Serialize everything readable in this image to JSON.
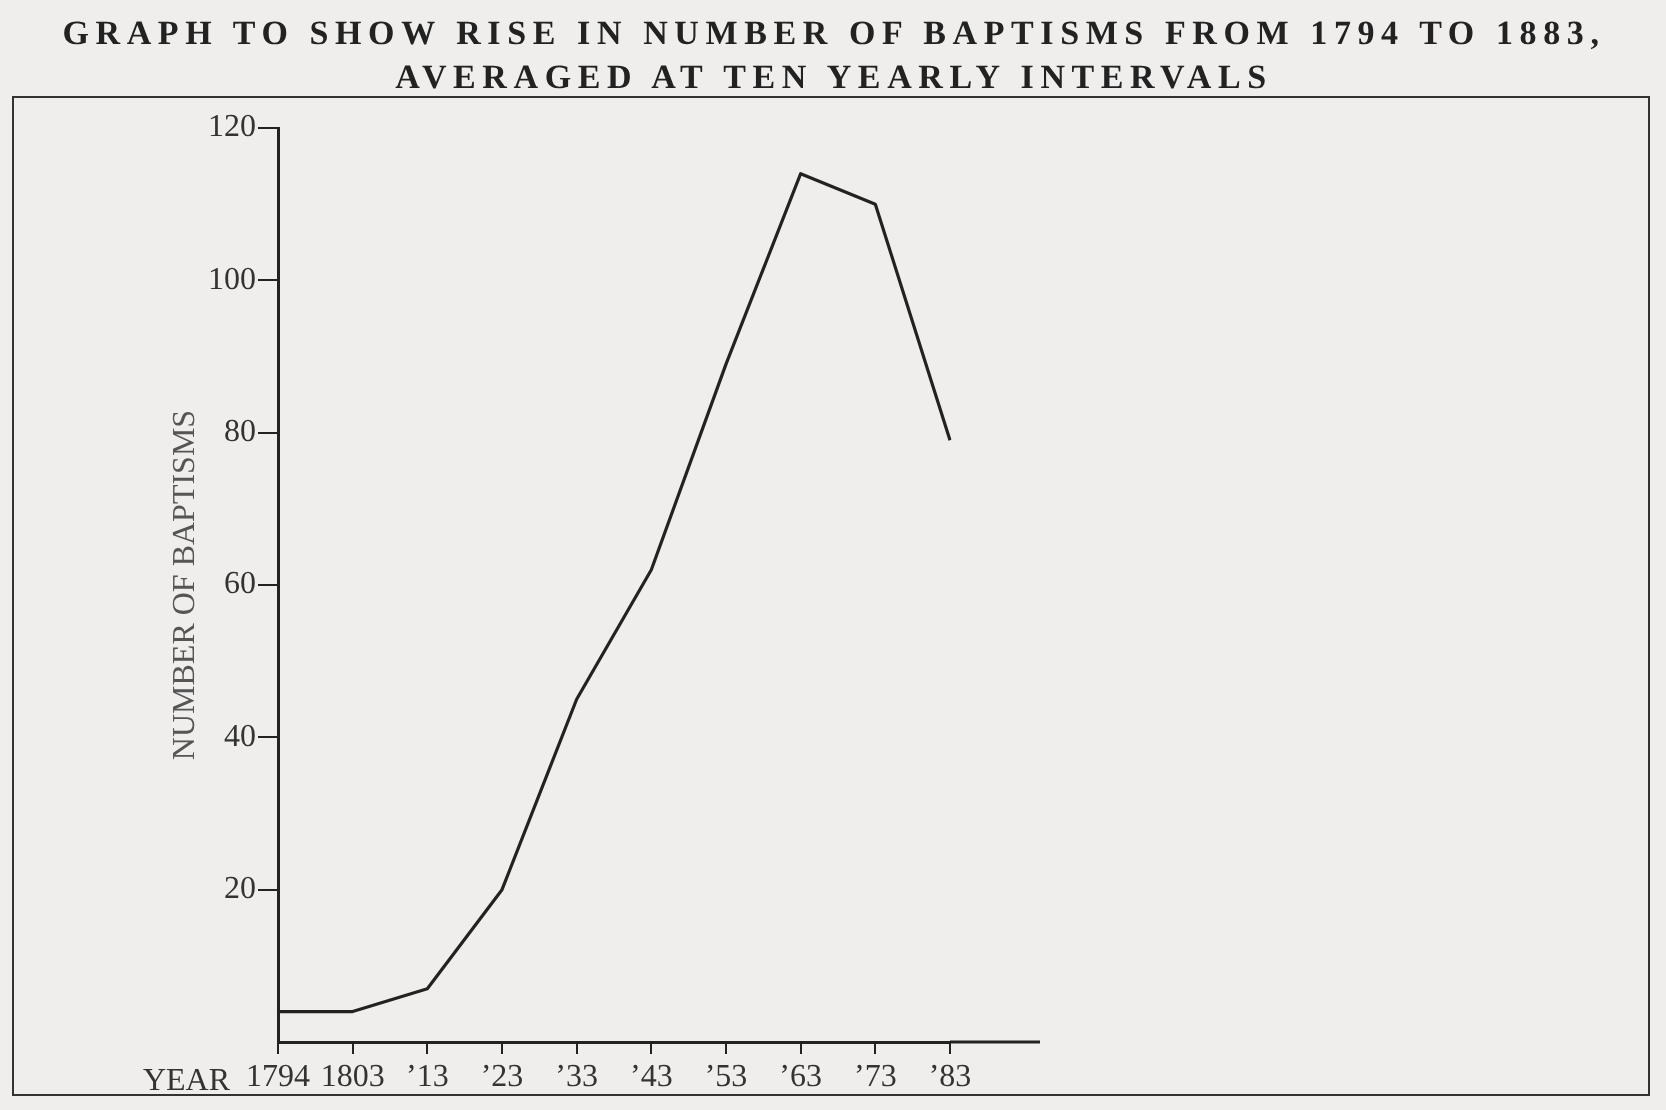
{
  "chart_data": {
    "type": "line",
    "title": "GRAPH TO SHOW RISE IN NUMBER OF BAPTISMS FROM 1794 TO 1883, AVERAGED AT TEN YEARLY INTERVALS",
    "xlabel": "YEAR",
    "ylabel": "NUMBER OF BAPTISMS",
    "categories": [
      "1794",
      "1803",
      "’13",
      "’23",
      "’33",
      "’43",
      "’53",
      "’63",
      "’73",
      "’83"
    ],
    "series": [
      {
        "color": "#222222",
        "values": [
          4,
          4,
          7,
          20,
          45,
          62,
          89,
          114,
          110,
          79
        ]
      }
    ],
    "ylim": [
      0,
      120
    ],
    "yticks": [
      20,
      40,
      60,
      80,
      100,
      120
    ],
    "grid": false,
    "legend": false,
    "marker": "none",
    "line_style": "solid"
  }
}
